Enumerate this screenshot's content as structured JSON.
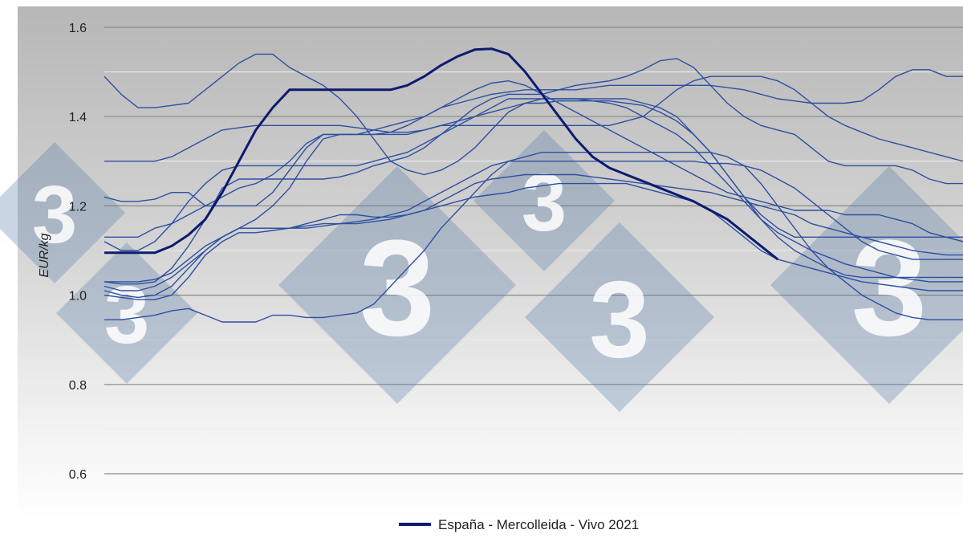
{
  "chart_data": {
    "type": "line",
    "xlabel": "",
    "ylabel": "EUR/kg",
    "ylim": [
      0.6,
      1.6
    ],
    "yticks": [
      "0.6",
      "0.8",
      "1.0",
      "1.2",
      "1.4",
      "1.6"
    ],
    "xlim": [
      1,
      52
    ],
    "grid": true,
    "legend_position": "bottom",
    "highlight": {
      "name": "España - Mercolleida - Vivo 2021",
      "color": "#0d1b6e",
      "x": [
        1,
        2,
        3,
        4,
        5,
        6,
        7,
        8,
        9,
        10,
        11,
        12,
        13,
        14,
        15,
        16,
        17,
        18,
        19,
        20,
        21,
        22,
        23,
        24,
        25,
        26,
        27,
        28,
        29,
        30,
        31,
        32,
        33,
        34,
        35,
        36,
        37,
        38,
        39,
        40,
        41
      ],
      "values": [
        1.095,
        1.095,
        1.095,
        1.095,
        1.11,
        1.135,
        1.17,
        1.23,
        1.3,
        1.37,
        1.42,
        1.46,
        1.46,
        1.46,
        1.46,
        1.46,
        1.46,
        1.46,
        1.47,
        1.49,
        1.515,
        1.535,
        1.55,
        1.552,
        1.54,
        1.5,
        1.45,
        1.4,
        1.35,
        1.31,
        1.285,
        1.27,
        1.255,
        1.24,
        1.225,
        1.21,
        1.19,
        1.17,
        1.14,
        1.11,
        1.08
      ]
    },
    "background_series_color": "#2e4fa0",
    "series": [
      {
        "x": [
          1,
          2,
          3,
          4,
          5,
          6,
          7,
          8,
          9,
          10,
          11,
          12,
          13,
          14,
          15,
          16,
          17,
          18,
          19,
          20,
          21,
          22,
          23,
          24,
          25,
          26,
          27,
          28,
          29,
          30,
          31,
          32,
          33,
          34,
          35,
          36,
          37,
          38,
          39,
          40,
          41,
          42,
          43,
          44,
          45,
          46,
          47,
          48,
          49,
          50,
          51,
          52
        ],
        "values": [
          1.49,
          1.45,
          1.42,
          1.42,
          1.425,
          1.43,
          1.46,
          1.49,
          1.52,
          1.54,
          1.54,
          1.51,
          1.49,
          1.47,
          1.44,
          1.4,
          1.35,
          1.3,
          1.28,
          1.27,
          1.28,
          1.3,
          1.33,
          1.37,
          1.41,
          1.43,
          1.44,
          1.44,
          1.44,
          1.44,
          1.44,
          1.44,
          1.43,
          1.42,
          1.4,
          1.36,
          1.32,
          1.27,
          1.22,
          1.17,
          1.13,
          1.1,
          1.08,
          1.06,
          1.045,
          1.04,
          1.04,
          1.04,
          1.04,
          1.04,
          1.04,
          1.04
        ]
      },
      {
        "x": [
          1,
          2,
          3,
          4,
          5,
          6,
          7,
          8,
          9,
          10,
          11,
          12,
          13,
          14,
          15,
          16,
          17,
          18,
          19,
          20,
          21,
          22,
          23,
          24,
          25,
          26,
          27,
          28,
          29,
          30,
          31,
          32,
          33,
          34,
          35,
          36,
          37,
          38,
          39,
          40,
          41,
          42,
          43,
          44,
          45,
          46,
          47,
          48,
          49,
          50,
          51,
          52
        ],
        "values": [
          1.3,
          1.3,
          1.3,
          1.3,
          1.31,
          1.33,
          1.35,
          1.37,
          1.375,
          1.38,
          1.38,
          1.38,
          1.38,
          1.38,
          1.38,
          1.375,
          1.37,
          1.365,
          1.365,
          1.37,
          1.38,
          1.38,
          1.38,
          1.38,
          1.38,
          1.38,
          1.38,
          1.38,
          1.38,
          1.38,
          1.38,
          1.39,
          1.4,
          1.43,
          1.46,
          1.48,
          1.49,
          1.49,
          1.49,
          1.49,
          1.48,
          1.46,
          1.43,
          1.4,
          1.38,
          1.365,
          1.35,
          1.34,
          1.33,
          1.32,
          1.31,
          1.3
        ]
      },
      {
        "x": [
          1,
          2,
          3,
          4,
          5,
          6,
          7,
          8,
          9,
          10,
          11,
          12,
          13,
          14,
          15,
          16,
          17,
          18,
          19,
          20,
          21,
          22,
          23,
          24,
          25,
          26,
          27,
          28,
          29,
          30,
          31,
          32,
          33,
          34,
          35,
          36,
          37,
          38,
          39,
          40,
          41,
          42,
          43,
          44,
          45,
          46,
          47,
          48,
          49,
          50,
          51,
          52
        ],
        "values": [
          1.22,
          1.21,
          1.21,
          1.215,
          1.23,
          1.23,
          1.2,
          1.2,
          1.2,
          1.2,
          1.23,
          1.28,
          1.33,
          1.36,
          1.36,
          1.36,
          1.36,
          1.365,
          1.38,
          1.4,
          1.42,
          1.44,
          1.46,
          1.475,
          1.48,
          1.47,
          1.45,
          1.43,
          1.41,
          1.39,
          1.37,
          1.35,
          1.33,
          1.31,
          1.29,
          1.27,
          1.25,
          1.23,
          1.22,
          1.21,
          1.2,
          1.19,
          1.19,
          1.19,
          1.18,
          1.18,
          1.18,
          1.17,
          1.16,
          1.14,
          1.13,
          1.13
        ]
      },
      {
        "x": [
          1,
          2,
          3,
          4,
          5,
          6,
          7,
          8,
          9,
          10,
          11,
          12,
          13,
          14,
          15,
          16,
          17,
          18,
          19,
          20,
          21,
          22,
          23,
          24,
          25,
          26,
          27,
          28,
          29,
          30,
          31,
          32,
          33,
          34,
          35,
          36,
          37,
          38,
          39,
          40,
          41,
          42,
          43,
          44,
          45,
          46,
          47,
          48,
          49,
          50,
          51,
          52
        ],
        "values": [
          1.13,
          1.13,
          1.13,
          1.15,
          1.16,
          1.18,
          1.2,
          1.22,
          1.24,
          1.25,
          1.27,
          1.3,
          1.34,
          1.36,
          1.36,
          1.36,
          1.37,
          1.38,
          1.39,
          1.4,
          1.42,
          1.43,
          1.44,
          1.45,
          1.455,
          1.46,
          1.46,
          1.46,
          1.46,
          1.465,
          1.47,
          1.47,
          1.47,
          1.47,
          1.47,
          1.47,
          1.47,
          1.465,
          1.46,
          1.45,
          1.44,
          1.435,
          1.43,
          1.43,
          1.43,
          1.435,
          1.46,
          1.49,
          1.505,
          1.505,
          1.49,
          1.49
        ]
      },
      {
        "x": [
          1,
          2,
          3,
          4,
          5,
          6,
          7,
          8,
          9,
          10,
          11,
          12,
          13,
          14,
          15,
          16,
          17,
          18,
          19,
          20,
          21,
          22,
          23,
          24,
          25,
          26,
          27,
          28,
          29,
          30,
          31,
          32,
          33,
          34,
          35,
          36,
          37,
          38,
          39,
          40,
          41,
          42,
          43,
          44,
          45,
          46,
          47,
          48,
          49,
          50,
          51,
          52
        ],
        "values": [
          1.12,
          1.1,
          1.1,
          1.12,
          1.16,
          1.21,
          1.25,
          1.28,
          1.29,
          1.29,
          1.29,
          1.29,
          1.29,
          1.29,
          1.29,
          1.29,
          1.3,
          1.31,
          1.32,
          1.34,
          1.36,
          1.38,
          1.4,
          1.42,
          1.44,
          1.44,
          1.44,
          1.44,
          1.44,
          1.435,
          1.43,
          1.42,
          1.4,
          1.38,
          1.36,
          1.33,
          1.29,
          1.25,
          1.21,
          1.17,
          1.14,
          1.12,
          1.1,
          1.085,
          1.07,
          1.06,
          1.05,
          1.04,
          1.035,
          1.03,
          1.03,
          1.03
        ]
      },
      {
        "x": [
          1,
          2,
          3,
          4,
          5,
          6,
          7,
          8,
          9,
          10,
          11,
          12,
          13,
          14,
          15,
          16,
          17,
          18,
          19,
          20,
          21,
          22,
          23,
          24,
          25,
          26,
          27,
          28,
          29,
          30,
          31,
          32,
          33,
          34,
          35,
          36,
          37,
          38,
          39,
          40,
          41,
          42,
          43,
          44,
          45,
          46,
          47,
          48,
          49,
          50,
          51,
          52
        ],
        "values": [
          1.03,
          1.025,
          1.025,
          1.03,
          1.06,
          1.11,
          1.17,
          1.24,
          1.26,
          1.26,
          1.26,
          1.26,
          1.26,
          1.26,
          1.265,
          1.275,
          1.29,
          1.3,
          1.31,
          1.33,
          1.36,
          1.39,
          1.42,
          1.44,
          1.45,
          1.45,
          1.45,
          1.46,
          1.47,
          1.475,
          1.48,
          1.49,
          1.505,
          1.525,
          1.53,
          1.51,
          1.47,
          1.43,
          1.4,
          1.38,
          1.37,
          1.36,
          1.33,
          1.3,
          1.29,
          1.29,
          1.29,
          1.29,
          1.28,
          1.26,
          1.25,
          1.25
        ]
      },
      {
        "x": [
          1,
          2,
          3,
          4,
          5,
          6,
          7,
          8,
          9,
          10,
          11,
          12,
          13,
          14,
          15,
          16,
          17,
          18,
          19,
          20,
          21,
          22,
          23,
          24,
          25,
          26,
          27,
          28,
          29,
          30,
          31,
          32,
          33,
          34,
          35,
          36,
          37,
          38,
          39,
          40,
          41,
          42,
          43,
          44,
          45,
          46,
          47,
          48,
          49,
          50,
          51,
          52
        ],
        "values": [
          1.03,
          1.03,
          1.03,
          1.035,
          1.05,
          1.08,
          1.11,
          1.13,
          1.15,
          1.17,
          1.2,
          1.24,
          1.3,
          1.35,
          1.36,
          1.36,
          1.36,
          1.36,
          1.36,
          1.37,
          1.38,
          1.39,
          1.4,
          1.41,
          1.42,
          1.43,
          1.43,
          1.435,
          1.435,
          1.435,
          1.435,
          1.43,
          1.425,
          1.41,
          1.39,
          1.36,
          1.32,
          1.27,
          1.22,
          1.18,
          1.15,
          1.13,
          1.13,
          1.13,
          1.13,
          1.13,
          1.13,
          1.13,
          1.13,
          1.13,
          1.13,
          1.12
        ]
      },
      {
        "x": [
          1,
          2,
          3,
          4,
          5,
          6,
          7,
          8,
          9,
          10,
          11,
          12,
          13,
          14,
          15,
          16,
          17,
          18,
          19,
          20,
          21,
          22,
          23,
          24,
          25,
          26,
          27,
          28,
          29,
          30,
          31,
          32,
          33,
          34,
          35,
          36,
          37,
          38,
          39,
          40,
          41,
          42,
          43,
          44,
          45,
          46,
          47,
          48,
          49,
          50,
          51,
          52
        ],
        "values": [
          1.01,
          1.0,
          0.995,
          1.0,
          1.02,
          1.06,
          1.1,
          1.13,
          1.15,
          1.15,
          1.15,
          1.15,
          1.15,
          1.155,
          1.16,
          1.16,
          1.165,
          1.17,
          1.18,
          1.19,
          1.21,
          1.23,
          1.25,
          1.26,
          1.265,
          1.27,
          1.27,
          1.27,
          1.27,
          1.265,
          1.26,
          1.255,
          1.25,
          1.245,
          1.24,
          1.235,
          1.23,
          1.22,
          1.21,
          1.2,
          1.19,
          1.18,
          1.16,
          1.15,
          1.14,
          1.13,
          1.12,
          1.11,
          1.1,
          1.095,
          1.09,
          1.09
        ]
      },
      {
        "x": [
          1,
          2,
          3,
          4,
          5,
          6,
          7,
          8,
          9,
          10,
          11,
          12,
          13,
          14,
          15,
          16,
          17,
          18,
          19,
          20,
          21,
          22,
          23,
          24,
          25,
          26,
          27,
          28,
          29,
          30,
          31,
          32,
          33,
          34,
          35,
          36,
          37,
          38,
          39,
          40,
          41,
          42,
          43,
          44,
          45,
          46,
          47,
          48,
          49,
          50,
          51,
          52
        ],
        "values": [
          1.0,
          0.995,
          0.99,
          0.99,
          1.0,
          1.04,
          1.09,
          1.12,
          1.14,
          1.14,
          1.145,
          1.15,
          1.16,
          1.17,
          1.18,
          1.18,
          1.175,
          1.175,
          1.18,
          1.19,
          1.2,
          1.21,
          1.22,
          1.225,
          1.23,
          1.24,
          1.245,
          1.25,
          1.25,
          1.25,
          1.25,
          1.25,
          1.24,
          1.23,
          1.22,
          1.21,
          1.19,
          1.16,
          1.13,
          1.1,
          1.08,
          1.07,
          1.06,
          1.05,
          1.04,
          1.03,
          1.025,
          1.02,
          1.015,
          1.01,
          1.01,
          1.01
        ]
      },
      {
        "x": [
          1,
          2,
          3,
          4,
          5,
          6,
          7,
          8,
          9,
          10,
          11,
          12,
          13,
          14,
          15,
          16,
          17,
          18,
          19,
          20,
          21,
          22,
          23,
          24,
          25,
          26,
          27,
          28,
          29,
          30,
          31,
          32,
          33,
          34,
          35,
          36,
          37,
          38,
          39,
          40,
          41,
          42,
          43,
          44,
          45,
          46,
          47,
          48,
          49,
          50,
          51,
          52
        ],
        "values": [
          0.945,
          0.945,
          0.95,
          0.955,
          0.965,
          0.97,
          0.955,
          0.94,
          0.94,
          0.94,
          0.955,
          0.955,
          0.95,
          0.95,
          0.955,
          0.96,
          0.98,
          1.02,
          1.06,
          1.1,
          1.15,
          1.19,
          1.23,
          1.27,
          1.3,
          1.31,
          1.32,
          1.32,
          1.32,
          1.32,
          1.32,
          1.32,
          1.32,
          1.32,
          1.32,
          1.32,
          1.32,
          1.31,
          1.29,
          1.25,
          1.2,
          1.15,
          1.1,
          1.06,
          1.03,
          1.0,
          0.98,
          0.96,
          0.95,
          0.945,
          0.945,
          0.945
        ]
      },
      {
        "x": [
          1,
          2,
          3,
          4,
          5,
          6,
          7,
          8,
          9,
          10,
          11,
          12,
          13,
          14,
          15,
          16,
          17,
          18,
          19,
          20,
          21,
          22,
          23,
          24,
          25,
          26,
          27,
          28,
          29,
          30,
          31,
          32,
          33,
          34,
          35,
          36,
          37,
          38,
          39,
          40,
          41,
          42,
          43,
          44,
          45,
          46,
          47,
          48,
          49,
          50,
          51,
          52
        ],
        "values": [
          1.02,
          1.01,
          1.01,
          1.02,
          1.04,
          1.07,
          1.1,
          1.13,
          1.15,
          1.15,
          1.15,
          1.15,
          1.155,
          1.16,
          1.16,
          1.165,
          1.17,
          1.18,
          1.19,
          1.21,
          1.23,
          1.25,
          1.27,
          1.29,
          1.3,
          1.3,
          1.3,
          1.3,
          1.3,
          1.3,
          1.3,
          1.3,
          1.3,
          1.3,
          1.3,
          1.3,
          1.295,
          1.295,
          1.29,
          1.28,
          1.26,
          1.24,
          1.21,
          1.18,
          1.15,
          1.12,
          1.1,
          1.09,
          1.08,
          1.08,
          1.08,
          1.08
        ]
      }
    ]
  }
}
